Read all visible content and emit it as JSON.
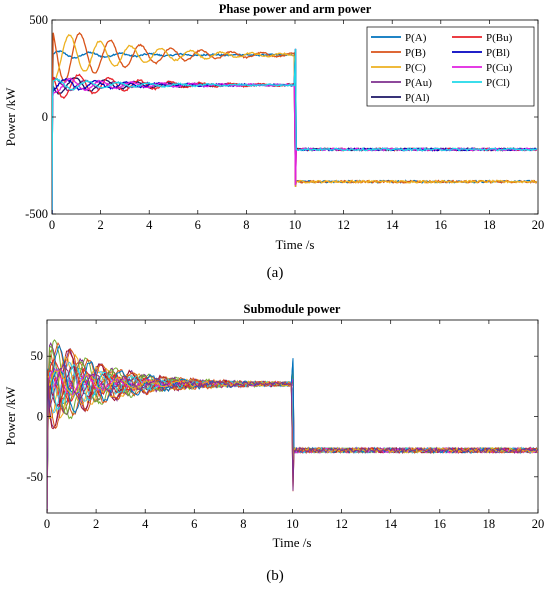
{
  "chart_data": [
    {
      "type": "line",
      "title": "Phase power and arm power",
      "xlabel": "Time /s",
      "ylabel": "Power /kW",
      "xlim": [
        0,
        20
      ],
      "ylim": [
        -500,
        500
      ],
      "xticks": [
        0,
        2,
        4,
        6,
        8,
        10,
        12,
        14,
        16,
        18,
        20
      ],
      "yticks": [
        -500,
        0,
        500
      ],
      "grid": false,
      "legend_position": "top-right",
      "legend_columns": 2,
      "panel_label": "(a)",
      "series": [
        {
          "name": "P(A)",
          "color": "#0072BD",
          "initial": 320,
          "amp": 20,
          "freq": 0.8,
          "phase": 0.0,
          "final": -333
        },
        {
          "name": "P(B)",
          "color": "#D95319",
          "initial": 320,
          "amp": 160,
          "freq": 0.8,
          "phase": 2.1,
          "final": -333
        },
        {
          "name": "P(C)",
          "color": "#EDB120",
          "initial": 320,
          "amp": 130,
          "freq": 0.8,
          "phase": 4.2,
          "final": -333
        },
        {
          "name": "P(Au)",
          "color": "#7E2F8E",
          "initial": 165,
          "amp": 35,
          "freq": 0.8,
          "phase": 1.0,
          "final": -167
        },
        {
          "name": "P(Al)",
          "color": "#1B1464",
          "initial": 165,
          "amp": 50,
          "freq": 0.8,
          "phase": 3.1,
          "final": -167
        },
        {
          "name": "P(Bu)",
          "color": "#E8222A",
          "initial": 165,
          "amp": 75,
          "freq": 0.8,
          "phase": 2.3,
          "final": -167
        },
        {
          "name": "P(Bl)",
          "color": "#0000C0",
          "initial": 165,
          "amp": 35,
          "freq": 0.8,
          "phase": 5.0,
          "final": -167
        },
        {
          "name": "P(Cu)",
          "color": "#E020E0",
          "initial": 165,
          "amp": 40,
          "freq": 0.8,
          "phase": 4.0,
          "final": -167
        },
        {
          "name": "P(Cl)",
          "color": "#1FD8E8",
          "initial": 165,
          "amp": 30,
          "freq": 0.8,
          "phase": 0.5,
          "final": -167
        }
      ]
    },
    {
      "type": "line",
      "title": "Submodule power",
      "xlabel": "Time /s",
      "ylabel": "Power /kW",
      "xlim": [
        0,
        20
      ],
      "ylim": [
        -80,
        80
      ],
      "xticks": [
        0,
        2,
        4,
        6,
        8,
        10,
        12,
        14,
        16,
        18,
        20
      ],
      "yticks": [
        -50,
        0,
        50
      ],
      "grid": false,
      "panel_label": "(b)",
      "steady_before": 27,
      "steady_after": -28,
      "series_count": 24,
      "colors": [
        "#0072BD",
        "#D95319",
        "#EDB120",
        "#7E2F8E",
        "#77AC30",
        "#4DBEEE",
        "#A2142F",
        "#E8222A",
        "#1FD8E8",
        "#E020E0"
      ]
    }
  ]
}
